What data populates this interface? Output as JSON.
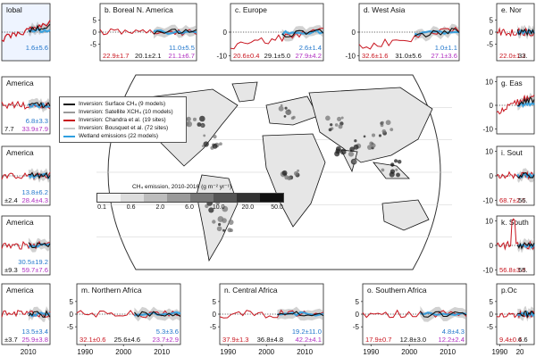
{
  "colors": {
    "surface": "#111111",
    "satellite": "#9a9a9a",
    "chandra": "#c8141e",
    "bousquet": "#c8c8c8",
    "wetland": "#2f9fe0",
    "purple": "#b02fc0",
    "blue": "#2277cc",
    "red": "#c8141e"
  },
  "legend": [
    {
      "label": "Inversion: Surface CH₄ (9 models)",
      "color": "#111111"
    },
    {
      "label": "Inversion: Satellite XCH₄ (10 models)",
      "color": "#9a9a9a"
    },
    {
      "label": "Inversion: Chandra et al. (19 sites)",
      "color": "#c8141e"
    },
    {
      "label": "Inversion: Bousquet et al. (72 sites)",
      "color": "#c8c8c8"
    },
    {
      "label": "Wetland emissions (22 models)",
      "color": "#2f9fe0"
    }
  ],
  "colorbar": {
    "label": "CH₄ emission, 2010-2016 (g m⁻² yr⁻¹)",
    "ticks": [
      "0.1",
      "0.6",
      "2.0",
      "6.0",
      "10.0",
      "20.0",
      "50.0"
    ]
  },
  "chart_data": [
    {
      "id": "a",
      "type": "line",
      "title": "lobal",
      "stats": {
        "blue": "1.6±5.6"
      },
      "x_ticks": [],
      "y_ticks": [],
      "trend": "up",
      "fill": true
    },
    {
      "id": "b",
      "type": "line",
      "title": "b. Boreal N. America",
      "stats": {
        "blue": "11.0±5.5",
        "red": "22.9±1.7",
        "black": "20.1±2.1",
        "purple": "21.1±6.7"
      },
      "y_ticks": [
        "5",
        "0",
        "-5"
      ],
      "x_ticks": [],
      "trend": "flat"
    },
    {
      "id": "c",
      "type": "line",
      "title": "c. Europe",
      "stats": {
        "blue": "2.6±1.4",
        "red": "20.6±0.4",
        "black": "29.1±5.0",
        "purple": "27.9±4.2"
      },
      "y_ticks": [
        "0",
        "-10"
      ],
      "x_ticks": [],
      "trend": "down"
    },
    {
      "id": "d",
      "type": "line",
      "title": "d. West Asia",
      "stats": {
        "blue": "1.0±1.1",
        "red": "32.6±1.6",
        "black": "31.0±5.6",
        "purple": "27.1±3.6"
      },
      "y_ticks": [
        "0",
        "-10"
      ],
      "x_ticks": [],
      "trend": "down"
    },
    {
      "id": "e",
      "type": "line",
      "title": "e. Nor",
      "stats": {
        "red": "22.0±1.2",
        "black": "33."
      },
      "y_ticks": [
        "5",
        "0",
        "-5"
      ],
      "x_ticks": [],
      "trend": "flat"
    },
    {
      "id": "f",
      "type": "line",
      "title": "America",
      "stats": {
        "blue": "6.8±3.3",
        "purple": "33.9±7.9",
        "black": "7.7"
      },
      "y_ticks": [],
      "x_ticks": [],
      "trend": "flat"
    },
    {
      "id": "g",
      "type": "line",
      "title": "g. Eas",
      "stats": {},
      "y_ticks": [
        "10",
        "0",
        "-10"
      ],
      "x_ticks": [],
      "trend": "up"
    },
    {
      "id": "h",
      "type": "line",
      "title": "America",
      "stats": {
        "blue": "13.8±6.2",
        "purple": "28.4±4.3",
        "black": "±2.4"
      },
      "y_ticks": [],
      "x_ticks": [],
      "trend": "flat"
    },
    {
      "id": "i",
      "type": "line",
      "title": "i. Sout",
      "stats": {
        "red": "68.7±2.5",
        "black": "56."
      },
      "y_ticks": [
        "10",
        "0",
        "-10"
      ],
      "x_ticks": [],
      "trend": "flat"
    },
    {
      "id": "j",
      "type": "line",
      "title": "America",
      "stats": {
        "blue": "30.5±19.2",
        "purple": "59.7±7.6",
        "black": "±9.3"
      },
      "y_ticks": [],
      "x_ticks": [],
      "trend": "flat"
    },
    {
      "id": "k",
      "type": "line",
      "title": "k. South",
      "stats": {
        "red": "56.8±3.8",
        "black": "55."
      },
      "y_ticks": [
        "10",
        "0",
        "-10"
      ],
      "x_ticks": [],
      "trend": "spike"
    },
    {
      "id": "l",
      "type": "line",
      "title": "America",
      "stats": {
        "blue": "13.5±3.4",
        "purple": "25.9±3.8",
        "black": "±3.7"
      },
      "y_ticks": [],
      "x_ticks": [
        "2010"
      ],
      "trend": "flat"
    },
    {
      "id": "m",
      "type": "line",
      "title": "m. Northern Africa",
      "stats": {
        "blue": "5.3±3.6",
        "red": "32.1±0.6",
        "black": "25.6±4.6",
        "purple": "23.7±2.9"
      },
      "y_ticks": [
        "5",
        "0",
        "-5"
      ],
      "x_ticks": [
        "1990",
        "2000",
        "2010"
      ],
      "trend": "flat"
    },
    {
      "id": "n",
      "type": "line",
      "title": "n. Central Africa",
      "stats": {
        "blue": "19.2±11.0",
        "red": "37.9±1.3",
        "black": "36.8±4.8",
        "purple": "42.2±4.1"
      },
      "y_ticks": [
        "5",
        "0",
        "-5"
      ],
      "x_ticks": [
        "1990",
        "2000",
        "2010"
      ],
      "trend": "flat"
    },
    {
      "id": "o",
      "type": "line",
      "title": "o. Southern Africa",
      "stats": {
        "blue": "4.8±4.3",
        "red": "17.9±0.7",
        "black": "12.8±3.0",
        "purple": "12.2±2.4"
      },
      "y_ticks": [
        "5",
        "0",
        "-5"
      ],
      "x_ticks": [
        "1990",
        "2000",
        "2010"
      ],
      "trend": "flat"
    },
    {
      "id": "p",
      "type": "line",
      "title": "p.Oc",
      "stats": {
        "red": "9.4±0.4",
        "black": "6.6"
      },
      "y_ticks": [
        "5",
        "0",
        "-5"
      ],
      "x_ticks": [
        "1990",
        "20"
      ],
      "trend": "flat"
    }
  ]
}
